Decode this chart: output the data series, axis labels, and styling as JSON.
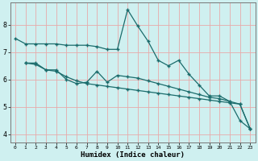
{
  "xlabel": "Humidex (Indice chaleur)",
  "bg_color": "#cff0f0",
  "grid_color": "#e8aaaa",
  "line_color": "#1a6b6b",
  "xlim": [
    -0.5,
    23.5
  ],
  "ylim": [
    3.7,
    8.8
  ],
  "xticks": [
    0,
    1,
    2,
    3,
    4,
    5,
    6,
    7,
    8,
    9,
    10,
    11,
    12,
    13,
    14,
    15,
    16,
    17,
    18,
    19,
    20,
    21,
    22,
    23
  ],
  "yticks": [
    4,
    5,
    6,
    7,
    8
  ],
  "line1_x": [
    0,
    1,
    2,
    3,
    4,
    5,
    6,
    7,
    8,
    9,
    10,
    11,
    12,
    13,
    14,
    15,
    16,
    17,
    18,
    19,
    20,
    21,
    22,
    23
  ],
  "line1_y": [
    7.5,
    7.3,
    7.3,
    7.3,
    7.3,
    7.25,
    7.25,
    7.25,
    7.2,
    7.1,
    7.1,
    8.55,
    7.95,
    7.4,
    6.7,
    6.5,
    6.7,
    6.2,
    5.8,
    5.4,
    5.4,
    5.2,
    4.5,
    4.2
  ],
  "line2_x": [
    1,
    2,
    3,
    4,
    5,
    6,
    7,
    8,
    9,
    10,
    11,
    12,
    13,
    14,
    15,
    16,
    17,
    18,
    19,
    20,
    21,
    22,
    23
  ],
  "line2_y": [
    6.6,
    6.6,
    6.35,
    6.35,
    6.0,
    5.85,
    5.9,
    6.3,
    5.9,
    6.15,
    6.1,
    6.05,
    5.95,
    5.85,
    5.75,
    5.65,
    5.55,
    5.45,
    5.35,
    5.3,
    5.2,
    5.1,
    4.2
  ],
  "line3_x": [
    1,
    2,
    3,
    4,
    5,
    6,
    7,
    8,
    9,
    10,
    11,
    12,
    13,
    14,
    15,
    16,
    17,
    18,
    19,
    20,
    21,
    22,
    23
  ],
  "line3_y": [
    6.6,
    6.55,
    6.35,
    6.3,
    6.1,
    5.95,
    5.85,
    5.8,
    5.75,
    5.7,
    5.65,
    5.6,
    5.55,
    5.5,
    5.45,
    5.4,
    5.35,
    5.3,
    5.25,
    5.2,
    5.15,
    5.1,
    4.2
  ]
}
